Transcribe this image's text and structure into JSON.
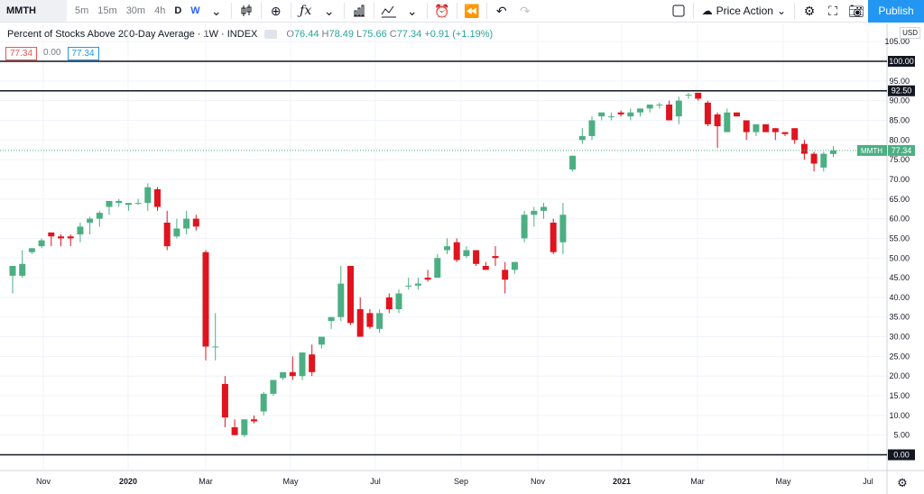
{
  "toolbar": {
    "symbol": "MMTH",
    "timeframes": [
      "5m",
      "15m",
      "30m",
      "4h",
      "D",
      "W"
    ],
    "active_timeframe": "W",
    "template_label": "Price Action",
    "publish_label": "Publish"
  },
  "legend": {
    "title": "Percent of Stocks Above 200-Day Average · 1W · INDEX",
    "o": "76.44",
    "h": "78.49",
    "l": "75.66",
    "c": "77.34",
    "change": "+0.91 (+1.19%)",
    "v1": "77.34",
    "v2": "0.00",
    "v3": "77.34"
  },
  "colors": {
    "up": "#4caf83",
    "down": "#e0141e",
    "accent": "#2196f3",
    "price_label": "#4caf83"
  },
  "chart_data": {
    "type": "candlestick",
    "ylim": [
      0,
      105
    ],
    "y_ticks": [
      5,
      10,
      15,
      20,
      25,
      30,
      35,
      40,
      45,
      50,
      55,
      60,
      65,
      70,
      75,
      80,
      85,
      90,
      95,
      105
    ],
    "x_ticks": [
      "Nov",
      "2020",
      "Mar",
      "May",
      "Jul",
      "Sep",
      "Nov",
      "2021",
      "Mar",
      "May",
      "Jul"
    ],
    "currency": "USD",
    "horizontal_lines": [
      {
        "value": 100.0,
        "label": "100.00"
      },
      {
        "value": 92.5,
        "label": "92.50"
      },
      {
        "value": 0.0,
        "label": "0.00"
      }
    ],
    "last_price": {
      "symbol": "MMTH",
      "value": "77.34"
    },
    "candles": [
      {
        "o": 45.5,
        "h": 48,
        "l": 41,
        "c": 48
      },
      {
        "o": 45.5,
        "h": 52,
        "l": 45,
        "c": 48.5
      },
      {
        "o": 51.5,
        "h": 52.5,
        "l": 51,
        "c": 52.5
      },
      {
        "o": 53,
        "h": 55,
        "l": 52.5,
        "c": 54.5
      },
      {
        "o": 56.5,
        "h": 56.5,
        "l": 53,
        "c": 55.5
      },
      {
        "o": 55.5,
        "h": 56,
        "l": 53,
        "c": 55
      },
      {
        "o": 55.5,
        "h": 56,
        "l": 53,
        "c": 55
      },
      {
        "o": 56,
        "h": 59,
        "l": 54,
        "c": 58
      },
      {
        "o": 59,
        "h": 60.5,
        "l": 56,
        "c": 60
      },
      {
        "o": 60,
        "h": 62,
        "l": 58,
        "c": 61.5
      },
      {
        "o": 63,
        "h": 64.5,
        "l": 61,
        "c": 64.5
      },
      {
        "o": 64,
        "h": 65,
        "l": 63,
        "c": 64.5
      },
      {
        "o": 63.5,
        "h": 64,
        "l": 62,
        "c": 64
      },
      {
        "o": 64,
        "h": 65,
        "l": 63.5,
        "c": 64
      },
      {
        "o": 64,
        "h": 69,
        "l": 62,
        "c": 68
      },
      {
        "o": 67.5,
        "h": 68,
        "l": 62,
        "c": 63
      },
      {
        "o": 59,
        "h": 62,
        "l": 52,
        "c": 53
      },
      {
        "o": 55.5,
        "h": 60,
        "l": 55,
        "c": 57.5
      },
      {
        "o": 57.5,
        "h": 62,
        "l": 56,
        "c": 60
      },
      {
        "o": 60,
        "h": 61,
        "l": 57,
        "c": 58
      },
      {
        "o": 51.5,
        "h": 52,
        "l": 24,
        "c": 27.5
      },
      {
        "o": 27.5,
        "h": 36,
        "l": 24,
        "c": 27.5
      },
      {
        "o": 18,
        "h": 20,
        "l": 7,
        "c": 9.5
      },
      {
        "o": 7,
        "h": 9,
        "l": 5,
        "c": 5
      },
      {
        "o": 5,
        "h": 9,
        "l": 4.5,
        "c": 9
      },
      {
        "o": 9,
        "h": 10,
        "l": 8,
        "c": 8.5
      },
      {
        "o": 11,
        "h": 16,
        "l": 10,
        "c": 15.5
      },
      {
        "o": 15.5,
        "h": 19,
        "l": 15,
        "c": 19
      },
      {
        "o": 19.5,
        "h": 21,
        "l": 19,
        "c": 21
      },
      {
        "o": 21,
        "h": 25,
        "l": 19,
        "c": 20
      },
      {
        "o": 20,
        "h": 26,
        "l": 19,
        "c": 26
      },
      {
        "o": 25.5,
        "h": 28,
        "l": 20,
        "c": 21
      },
      {
        "o": 28,
        "h": 29,
        "l": 27,
        "c": 30
      },
      {
        "o": 34,
        "h": 35,
        "l": 32,
        "c": 35
      },
      {
        "o": 35,
        "h": 48,
        "l": 34,
        "c": 43.5
      },
      {
        "o": 48,
        "h": 48,
        "l": 33,
        "c": 33.5
      },
      {
        "o": 37,
        "h": 40,
        "l": 30,
        "c": 30
      },
      {
        "o": 36,
        "h": 37,
        "l": 32,
        "c": 32.5
      },
      {
        "o": 32,
        "h": 37,
        "l": 31,
        "c": 36
      },
      {
        "o": 40,
        "h": 41,
        "l": 36,
        "c": 37
      },
      {
        "o": 37,
        "h": 42,
        "l": 36,
        "c": 41
      },
      {
        "o": 43,
        "h": 45,
        "l": 42,
        "c": 43
      },
      {
        "o": 43,
        "h": 45,
        "l": 42,
        "c": 43.5
      },
      {
        "o": 45,
        "h": 47,
        "l": 44,
        "c": 44.5
      },
      {
        "o": 45,
        "h": 51,
        "l": 45,
        "c": 50
      },
      {
        "o": 52,
        "h": 55,
        "l": 51,
        "c": 53
      },
      {
        "o": 54,
        "h": 55,
        "l": 49,
        "c": 49.5
      },
      {
        "o": 50.5,
        "h": 53,
        "l": 50,
        "c": 52
      },
      {
        "o": 52,
        "h": 52,
        "l": 48,
        "c": 48.5
      },
      {
        "o": 48,
        "h": 49,
        "l": 47,
        "c": 47
      },
      {
        "o": 50.5,
        "h": 53,
        "l": 48,
        "c": 50
      },
      {
        "o": 47,
        "h": 49,
        "l": 41,
        "c": 44.5
      },
      {
        "o": 47,
        "h": 49,
        "l": 46,
        "c": 49
      },
      {
        "o": 55,
        "h": 62,
        "l": 54,
        "c": 61
      },
      {
        "o": 61,
        "h": 63,
        "l": 58,
        "c": 62
      },
      {
        "o": 62,
        "h": 64,
        "l": 60,
        "c": 63
      },
      {
        "o": 59,
        "h": 60,
        "l": 51,
        "c": 51.5
      },
      {
        "o": 54,
        "h": 64,
        "l": 51,
        "c": 61
      },
      {
        "o": 72.5,
        "h": 76,
        "l": 72,
        "c": 76
      },
      {
        "o": 80,
        "h": 83,
        "l": 79,
        "c": 81
      },
      {
        "o": 81,
        "h": 86,
        "l": 80,
        "c": 85
      },
      {
        "o": 86,
        "h": 87,
        "l": 85,
        "c": 87
      },
      {
        "o": 86,
        "h": 87,
        "l": 85,
        "c": 86
      },
      {
        "o": 87,
        "h": 87.5,
        "l": 86,
        "c": 86.5
      },
      {
        "o": 86,
        "h": 88,
        "l": 85,
        "c": 87
      },
      {
        "o": 87,
        "h": 88,
        "l": 86,
        "c": 88
      },
      {
        "o": 88,
        "h": 89,
        "l": 87,
        "c": 89
      },
      {
        "o": 89,
        "h": 89.5,
        "l": 88,
        "c": 89
      },
      {
        "o": 89,
        "h": 90,
        "l": 85,
        "c": 85
      },
      {
        "o": 86,
        "h": 91,
        "l": 84,
        "c": 90
      },
      {
        "o": 91.5,
        "h": 92,
        "l": 90.5,
        "c": 91.5
      },
      {
        "o": 92,
        "h": 92,
        "l": 90,
        "c": 90.5
      },
      {
        "o": 89.5,
        "h": 90,
        "l": 83.5,
        "c": 84
      },
      {
        "o": 86.5,
        "h": 87,
        "l": 78,
        "c": 83.5
      },
      {
        "o": 82,
        "h": 88,
        "l": 82,
        "c": 87
      },
      {
        "o": 87,
        "h": 87,
        "l": 86,
        "c": 86
      },
      {
        "o": 85,
        "h": 85,
        "l": 80,
        "c": 82
      },
      {
        "o": 82,
        "h": 84,
        "l": 81,
        "c": 84
      },
      {
        "o": 84,
        "h": 84,
        "l": 82,
        "c": 82
      },
      {
        "o": 83,
        "h": 83,
        "l": 80,
        "c": 82
      },
      {
        "o": 82,
        "h": 82,
        "l": 81,
        "c": 81.5
      },
      {
        "o": 83,
        "h": 83,
        "l": 79,
        "c": 80
      },
      {
        "o": 79,
        "h": 80,
        "l": 75,
        "c": 76.5
      },
      {
        "o": 76.5,
        "h": 77,
        "l": 72,
        "c": 74
      },
      {
        "o": 73,
        "h": 77,
        "l": 72,
        "c": 76.5
      },
      {
        "o": 76.44,
        "h": 78.49,
        "l": 75.66,
        "c": 77.34
      }
    ]
  }
}
